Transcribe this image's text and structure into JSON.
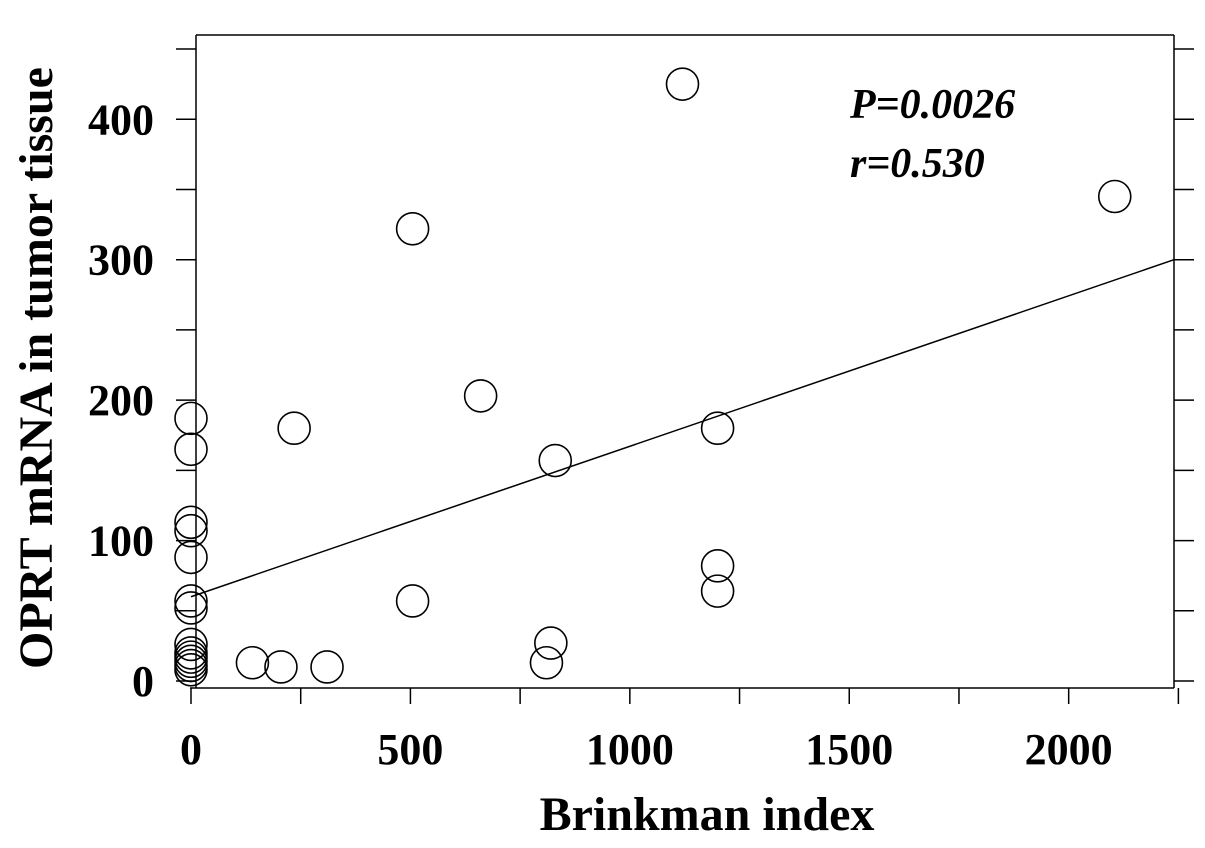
{
  "chart_data": {
    "type": "scatter",
    "title": "",
    "xlabel": "Brinkman index",
    "ylabel": "OPRT mRNA  in  tumor tissue",
    "xlim": [
      0,
      2240
    ],
    "ylim": [
      0,
      460
    ],
    "x_ticks": [
      0,
      500,
      1000,
      1500,
      2000
    ],
    "y_ticks": [
      0,
      100,
      200,
      300,
      400
    ],
    "x_minor_ticks": [
      250,
      750,
      1250,
      1750,
      2250
    ],
    "y_minor_ticks": [
      50,
      150,
      250,
      350,
      450
    ],
    "grid": false,
    "legend": "none",
    "annotations": [
      "P=0.0026",
      "r=0.530"
    ],
    "trendline": {
      "x": [
        0,
        2240
      ],
      "y": [
        60,
        300
      ]
    },
    "points": [
      {
        "x": 0,
        "y": 8
      },
      {
        "x": 0,
        "y": 11
      },
      {
        "x": 0,
        "y": 14
      },
      {
        "x": 0,
        "y": 17
      },
      {
        "x": 0,
        "y": 20
      },
      {
        "x": 0,
        "y": 26
      },
      {
        "x": 0,
        "y": 52
      },
      {
        "x": 0,
        "y": 57
      },
      {
        "x": 0,
        "y": 88
      },
      {
        "x": 0,
        "y": 107
      },
      {
        "x": 0,
        "y": 113
      },
      {
        "x": 0,
        "y": 165
      },
      {
        "x": 0,
        "y": 187
      },
      {
        "x": 140,
        "y": 13
      },
      {
        "x": 205,
        "y": 10
      },
      {
        "x": 310,
        "y": 10
      },
      {
        "x": 235,
        "y": 180
      },
      {
        "x": 505,
        "y": 322
      },
      {
        "x": 505,
        "y": 57
      },
      {
        "x": 660,
        "y": 203
      },
      {
        "x": 810,
        "y": 13
      },
      {
        "x": 820,
        "y": 27
      },
      {
        "x": 830,
        "y": 157
      },
      {
        "x": 1120,
        "y": 425
      },
      {
        "x": 1200,
        "y": 180
      },
      {
        "x": 1200,
        "y": 82
      },
      {
        "x": 1200,
        "y": 64
      },
      {
        "x": 2105,
        "y": 345
      }
    ]
  }
}
